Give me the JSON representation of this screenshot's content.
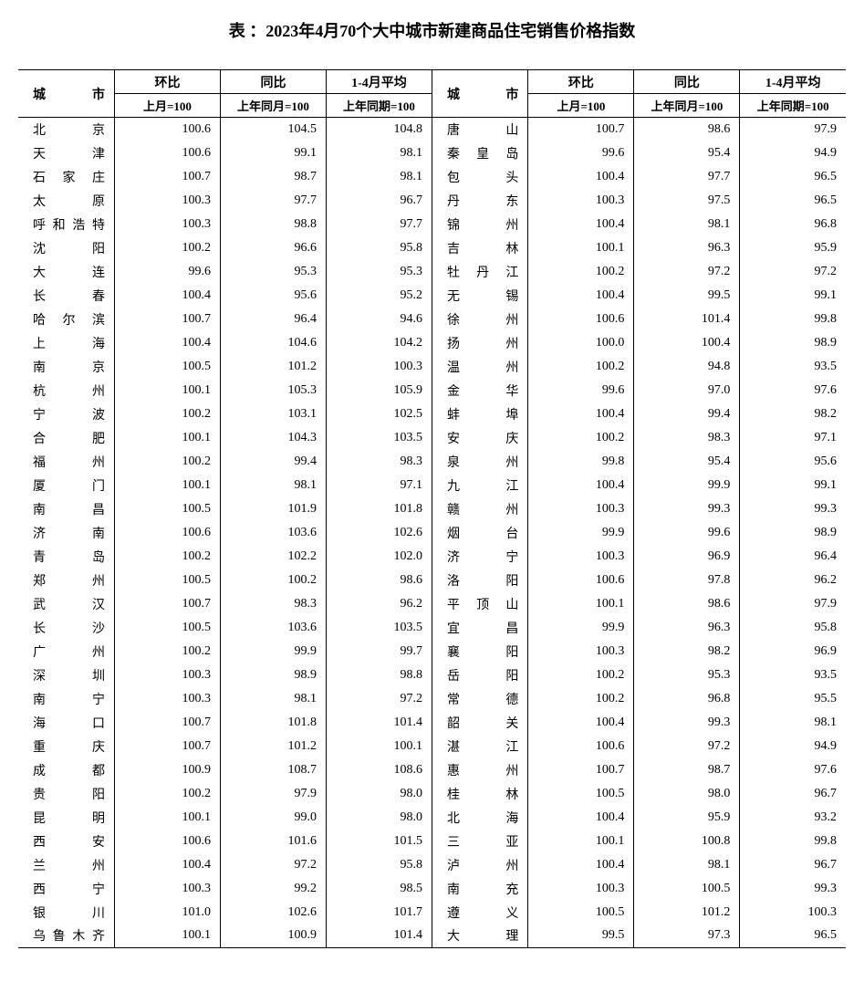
{
  "title": "表 ：2023年4月70个大中城市新建商品住宅销售价格指数",
  "headers": {
    "city": "城市",
    "mom": "环比",
    "yoy": "同比",
    "avg": "1-4月平均",
    "mom_sub": "上月=100",
    "yoy_sub": "上年同月=100",
    "avg_sub": "上年同期=100"
  },
  "left": [
    {
      "city": "北　　京",
      "mom": "100.6",
      "yoy": "104.5",
      "avg": "104.8"
    },
    {
      "city": "天　　津",
      "mom": "100.6",
      "yoy": "99.1",
      "avg": "98.1"
    },
    {
      "city": "石 家 庄",
      "mom": "100.7",
      "yoy": "98.7",
      "avg": "98.1"
    },
    {
      "city": "太　　原",
      "mom": "100.3",
      "yoy": "97.7",
      "avg": "96.7"
    },
    {
      "city": "呼和浩特",
      "mom": "100.3",
      "yoy": "98.8",
      "avg": "97.7"
    },
    {
      "city": "沈　　阳",
      "mom": "100.2",
      "yoy": "96.6",
      "avg": "95.8"
    },
    {
      "city": "大　　连",
      "mom": "99.6",
      "yoy": "95.3",
      "avg": "95.3"
    },
    {
      "city": "长　　春",
      "mom": "100.4",
      "yoy": "95.6",
      "avg": "95.2"
    },
    {
      "city": "哈 尔 滨",
      "mom": "100.7",
      "yoy": "96.4",
      "avg": "94.6"
    },
    {
      "city": "上　　海",
      "mom": "100.4",
      "yoy": "104.6",
      "avg": "104.2"
    },
    {
      "city": "南　　京",
      "mom": "100.5",
      "yoy": "101.2",
      "avg": "100.3"
    },
    {
      "city": "杭　　州",
      "mom": "100.1",
      "yoy": "105.3",
      "avg": "105.9"
    },
    {
      "city": "宁　　波",
      "mom": "100.2",
      "yoy": "103.1",
      "avg": "102.5"
    },
    {
      "city": "合　　肥",
      "mom": "100.1",
      "yoy": "104.3",
      "avg": "103.5"
    },
    {
      "city": "福　　州",
      "mom": "100.2",
      "yoy": "99.4",
      "avg": "98.3"
    },
    {
      "city": "厦　　门",
      "mom": "100.1",
      "yoy": "98.1",
      "avg": "97.1"
    },
    {
      "city": "南　　昌",
      "mom": "100.5",
      "yoy": "101.9",
      "avg": "101.8"
    },
    {
      "city": "济　　南",
      "mom": "100.6",
      "yoy": "103.6",
      "avg": "102.6"
    },
    {
      "city": "青　　岛",
      "mom": "100.2",
      "yoy": "102.2",
      "avg": "102.0"
    },
    {
      "city": "郑　　州",
      "mom": "100.5",
      "yoy": "100.2",
      "avg": "98.6"
    },
    {
      "city": "武　　汉",
      "mom": "100.7",
      "yoy": "98.3",
      "avg": "96.2"
    },
    {
      "city": "长　　沙",
      "mom": "100.5",
      "yoy": "103.6",
      "avg": "103.5"
    },
    {
      "city": "广　　州",
      "mom": "100.2",
      "yoy": "99.9",
      "avg": "99.7"
    },
    {
      "city": "深　　圳",
      "mom": "100.3",
      "yoy": "98.9",
      "avg": "98.8"
    },
    {
      "city": "南　　宁",
      "mom": "100.3",
      "yoy": "98.1",
      "avg": "97.2"
    },
    {
      "city": "海　　口",
      "mom": "100.7",
      "yoy": "101.8",
      "avg": "101.4"
    },
    {
      "city": "重　　庆",
      "mom": "100.7",
      "yoy": "101.2",
      "avg": "100.1"
    },
    {
      "city": "成　　都",
      "mom": "100.9",
      "yoy": "108.7",
      "avg": "108.6"
    },
    {
      "city": "贵　　阳",
      "mom": "100.2",
      "yoy": "97.9",
      "avg": "98.0"
    },
    {
      "city": "昆　　明",
      "mom": "100.1",
      "yoy": "99.0",
      "avg": "98.0"
    },
    {
      "city": "西　　安",
      "mom": "100.6",
      "yoy": "101.6",
      "avg": "101.5"
    },
    {
      "city": "兰　　州",
      "mom": "100.4",
      "yoy": "97.2",
      "avg": "95.8"
    },
    {
      "city": "西　　宁",
      "mom": "100.3",
      "yoy": "99.2",
      "avg": "98.5"
    },
    {
      "city": "银　　川",
      "mom": "101.0",
      "yoy": "102.6",
      "avg": "101.7"
    },
    {
      "city": "乌鲁木齐",
      "mom": "100.1",
      "yoy": "100.9",
      "avg": "101.4"
    }
  ],
  "right": [
    {
      "city": "唐　　山",
      "mom": "100.7",
      "yoy": "98.6",
      "avg": "97.9"
    },
    {
      "city": "秦 皇 岛",
      "mom": "99.6",
      "yoy": "95.4",
      "avg": "94.9"
    },
    {
      "city": "包　　头",
      "mom": "100.4",
      "yoy": "97.7",
      "avg": "96.5"
    },
    {
      "city": "丹　　东",
      "mom": "100.3",
      "yoy": "97.5",
      "avg": "96.5"
    },
    {
      "city": "锦　　州",
      "mom": "100.4",
      "yoy": "98.1",
      "avg": "96.8"
    },
    {
      "city": "吉　　林",
      "mom": "100.1",
      "yoy": "96.3",
      "avg": "95.9"
    },
    {
      "city": "牡 丹 江",
      "mom": "100.2",
      "yoy": "97.2",
      "avg": "97.2"
    },
    {
      "city": "无　　锡",
      "mom": "100.4",
      "yoy": "99.5",
      "avg": "99.1"
    },
    {
      "city": "徐　　州",
      "mom": "100.6",
      "yoy": "101.4",
      "avg": "99.8"
    },
    {
      "city": "扬　　州",
      "mom": "100.0",
      "yoy": "100.4",
      "avg": "98.9"
    },
    {
      "city": "温　　州",
      "mom": "100.2",
      "yoy": "94.8",
      "avg": "93.5"
    },
    {
      "city": "金　　华",
      "mom": "99.6",
      "yoy": "97.0",
      "avg": "97.6"
    },
    {
      "city": "蚌　　埠",
      "mom": "100.4",
      "yoy": "99.4",
      "avg": "98.2"
    },
    {
      "city": "安　　庆",
      "mom": "100.2",
      "yoy": "98.3",
      "avg": "97.1"
    },
    {
      "city": "泉　　州",
      "mom": "99.8",
      "yoy": "95.4",
      "avg": "95.6"
    },
    {
      "city": "九　　江",
      "mom": "100.4",
      "yoy": "99.9",
      "avg": "99.1"
    },
    {
      "city": "赣　　州",
      "mom": "100.3",
      "yoy": "99.3",
      "avg": "99.3"
    },
    {
      "city": "烟　　台",
      "mom": "99.9",
      "yoy": "99.6",
      "avg": "98.9"
    },
    {
      "city": "济　　宁",
      "mom": "100.3",
      "yoy": "96.9",
      "avg": "96.4"
    },
    {
      "city": "洛　　阳",
      "mom": "100.6",
      "yoy": "97.8",
      "avg": "96.2"
    },
    {
      "city": "平 顶 山",
      "mom": "100.1",
      "yoy": "98.6",
      "avg": "97.9"
    },
    {
      "city": "宜　　昌",
      "mom": "99.9",
      "yoy": "96.3",
      "avg": "95.8"
    },
    {
      "city": "襄　　阳",
      "mom": "100.3",
      "yoy": "98.2",
      "avg": "96.9"
    },
    {
      "city": "岳　　阳",
      "mom": "100.2",
      "yoy": "95.3",
      "avg": "93.5"
    },
    {
      "city": "常　　德",
      "mom": "100.2",
      "yoy": "96.8",
      "avg": "95.5"
    },
    {
      "city": "韶　　关",
      "mom": "100.4",
      "yoy": "99.3",
      "avg": "98.1"
    },
    {
      "city": "湛　　江",
      "mom": "100.6",
      "yoy": "97.2",
      "avg": "94.9"
    },
    {
      "city": "惠　　州",
      "mom": "100.7",
      "yoy": "98.7",
      "avg": "97.6"
    },
    {
      "city": "桂　　林",
      "mom": "100.5",
      "yoy": "98.0",
      "avg": "96.7"
    },
    {
      "city": "北　　海",
      "mom": "100.4",
      "yoy": "95.9",
      "avg": "93.2"
    },
    {
      "city": "三　　亚",
      "mom": "100.1",
      "yoy": "100.8",
      "avg": "99.8"
    },
    {
      "city": "泸　　州",
      "mom": "100.4",
      "yoy": "98.1",
      "avg": "96.7"
    },
    {
      "city": "南　　充",
      "mom": "100.3",
      "yoy": "100.5",
      "avg": "99.3"
    },
    {
      "city": "遵　　义",
      "mom": "100.5",
      "yoy": "101.2",
      "avg": "100.3"
    },
    {
      "city": "大　　理",
      "mom": "99.5",
      "yoy": "97.3",
      "avg": "96.5"
    }
  ]
}
